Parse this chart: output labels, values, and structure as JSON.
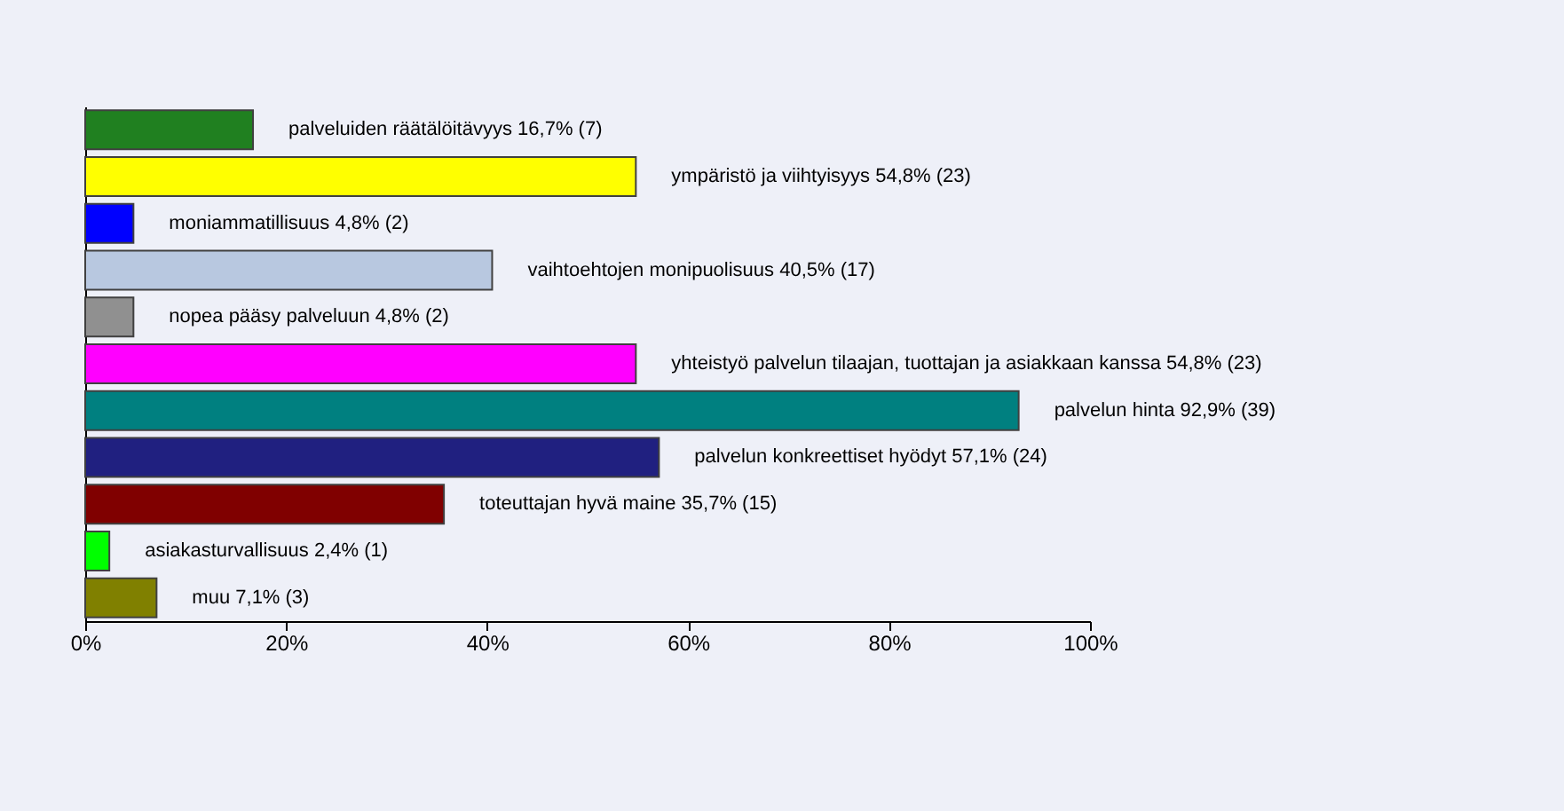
{
  "chart_data": {
    "type": "bar",
    "orientation": "horizontal",
    "categories": [
      null,
      null,
      null,
      null,
      null,
      null,
      null,
      null,
      null,
      null,
      null
    ],
    "values": [
      16.7,
      54.8,
      4.8,
      40.5,
      4.8,
      54.8,
      92.9,
      57.1,
      35.7,
      2.4,
      7.1
    ],
    "colors": [
      "#208020",
      "#ffff00",
      "#0000ff",
      "#b8c8e0",
      "#909090",
      "#ff00ff",
      "#008080",
      "#202080",
      "#800000",
      "#00ff00",
      "#808000"
    ],
    "value_labels": [
      "palveluiden räätälöitävyys 16,7% (7)",
      "ympäristö ja viihtyisyys 54,8% (23)",
      "moniammatillisuus 4,8% (2)",
      "vaihtoehtojen monipuolisuus 40,5% (17)",
      "nopea pääsy palveluun 4,8% (2)",
      "yhteistyö palvelun tilaajan, tuottajan ja asiakkaan kanssa 54,8% (23)",
      "palvelun hinta 92,9% (39)",
      "palvelun konkreettiset hyödyt 57,1% (24)",
      "toteuttajan hyvä maine 35,7% (15)",
      "asiakasturvallisuus 2,4% (1)",
      "muu 7,1% (3)"
    ],
    "xlim": [
      0,
      100
    ],
    "xticks": [
      {
        "value": 0,
        "label": "0%"
      },
      {
        "value": 20,
        "label": "20%"
      },
      {
        "value": 40,
        "label": "40%"
      },
      {
        "value": 60,
        "label": "60%"
      },
      {
        "value": 80,
        "label": "80%"
      },
      {
        "value": 100,
        "label": "100%"
      }
    ],
    "tick_labels": "x",
    "grid": false
  }
}
